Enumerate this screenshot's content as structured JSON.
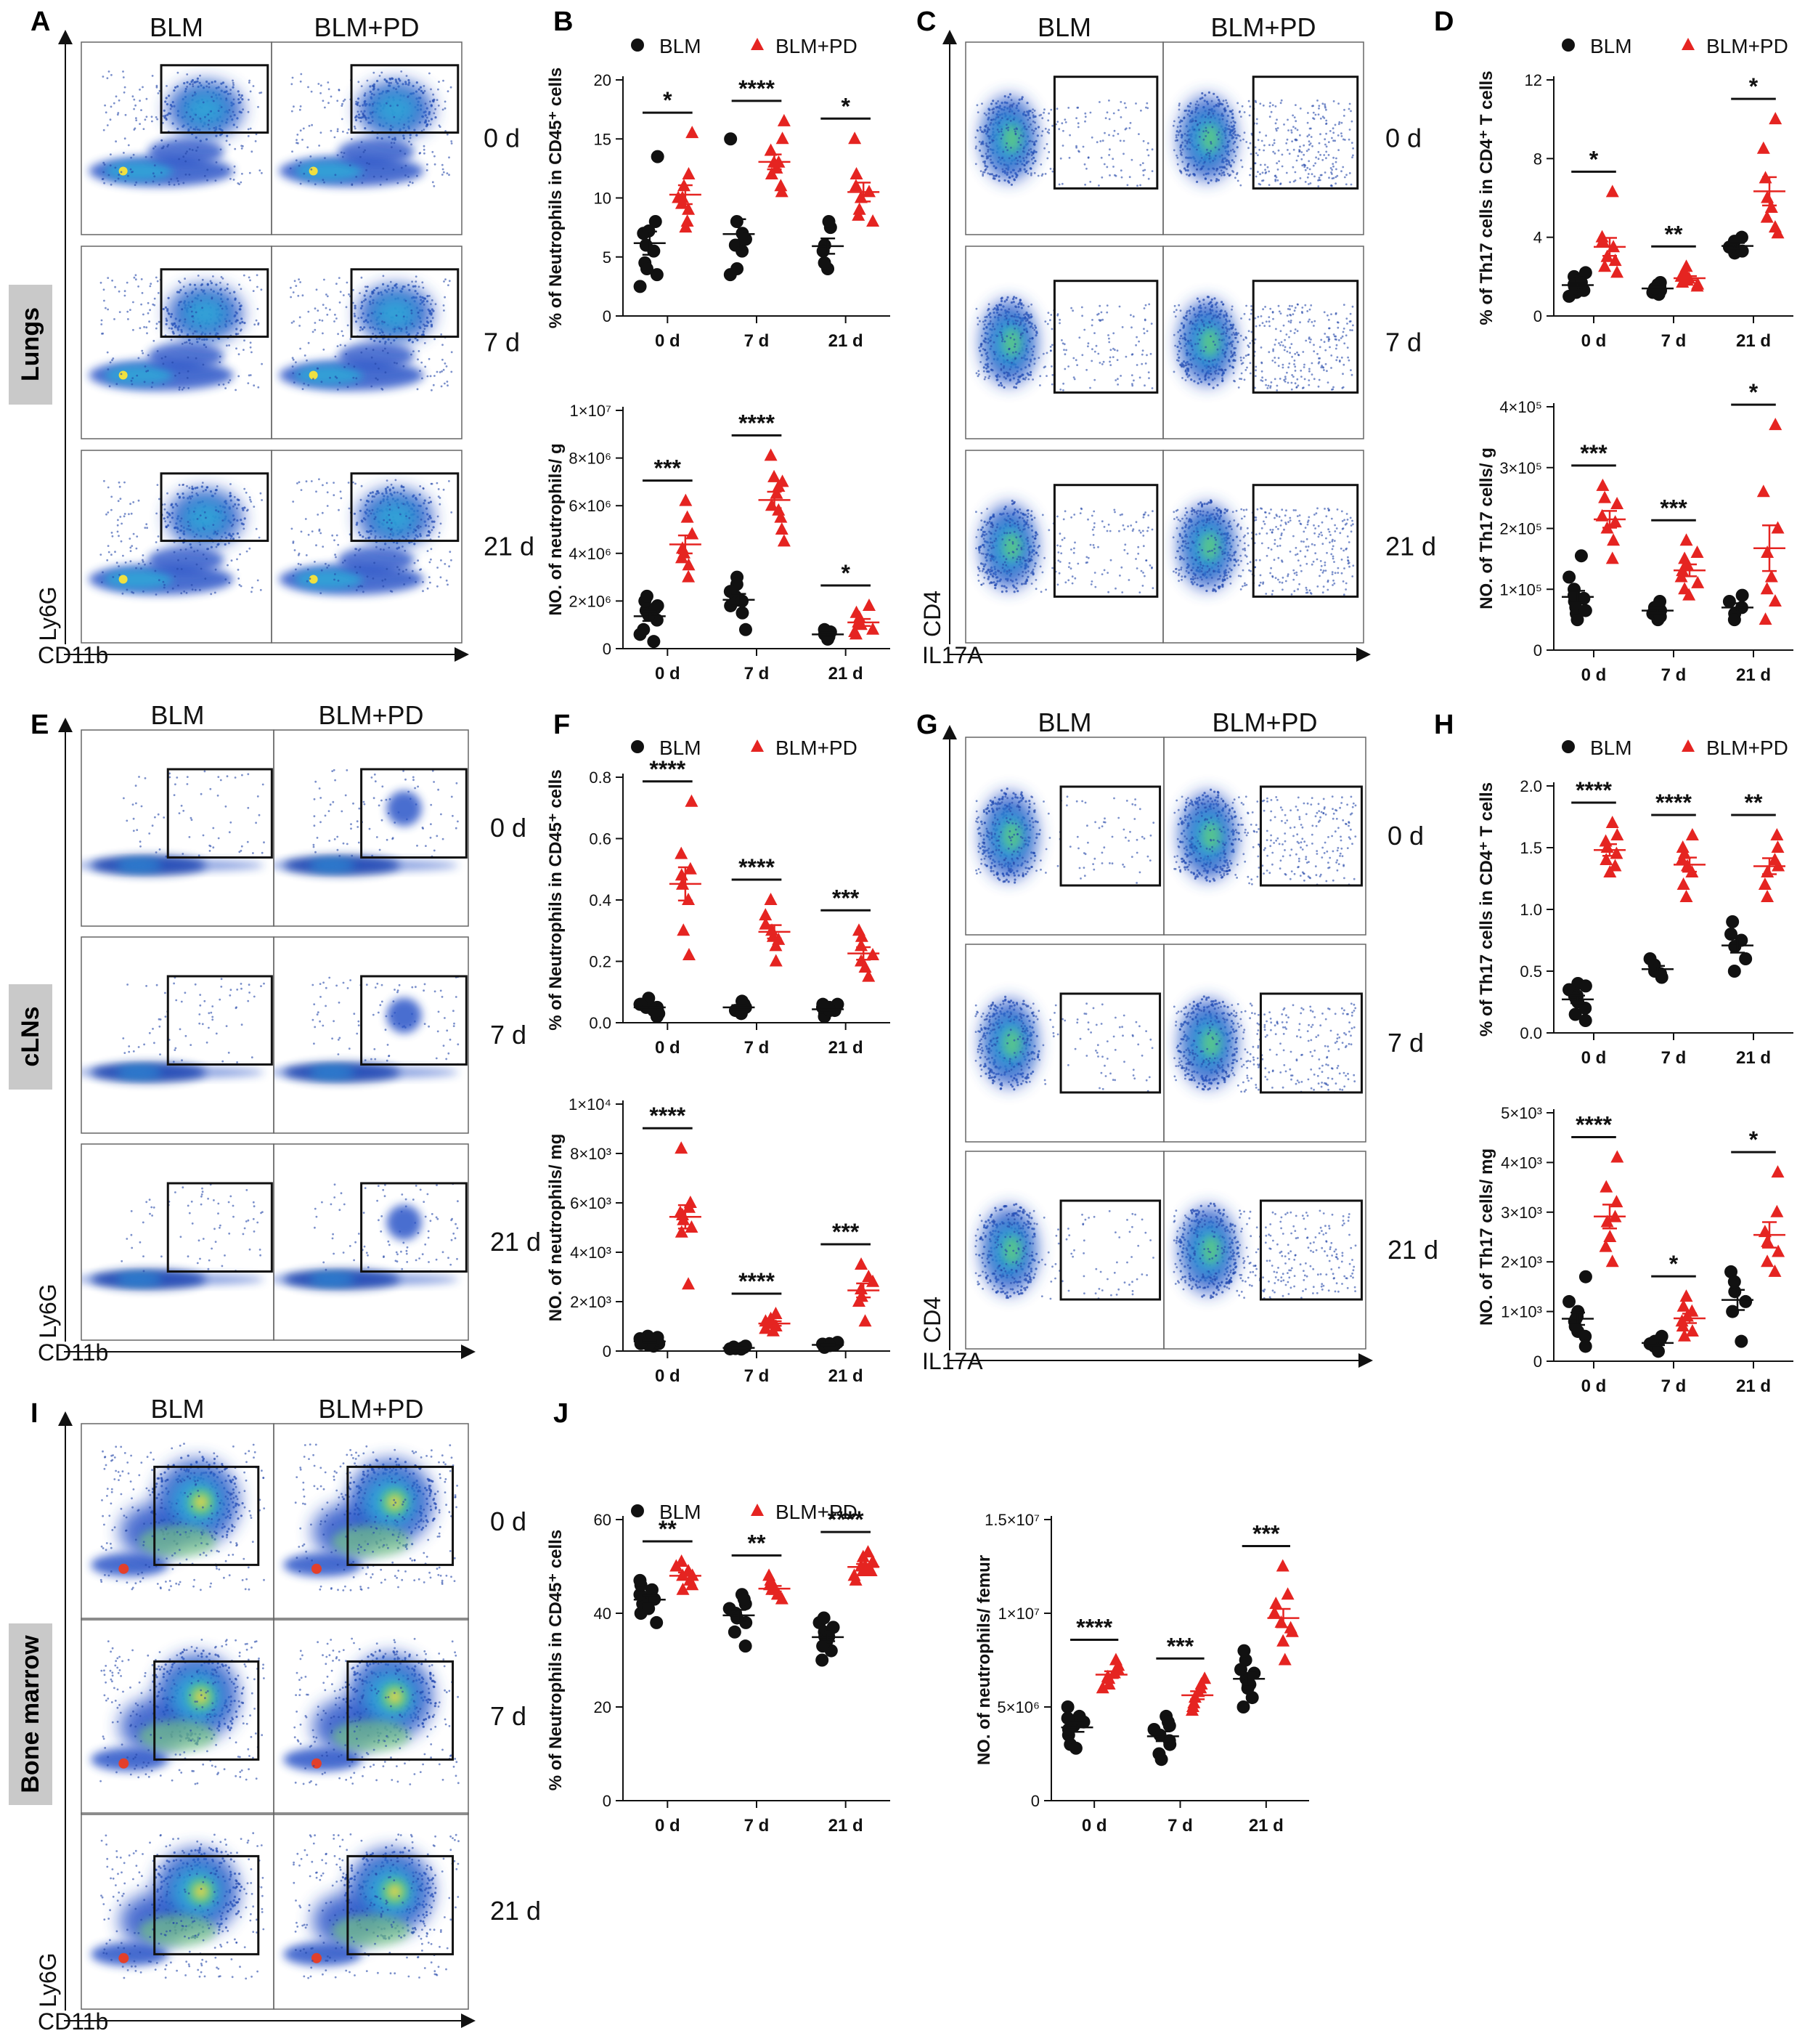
{
  "panel_letters": [
    "A",
    "B",
    "C",
    "D",
    "E",
    "F",
    "G",
    "H",
    "I",
    "J"
  ],
  "tissue_labels": [
    "Lungs",
    "cLNs",
    "Bone marrow"
  ],
  "groups": [
    "BLM",
    "BLM+PD"
  ],
  "timepoints": [
    "0 d",
    "7 d",
    "21 d"
  ],
  "axes": {
    "neutrophil_y": "Ly6G",
    "neutrophil_x": "CD11b",
    "th17_y": "CD4",
    "th17_x": "IL17A"
  },
  "colors": {
    "blm": "#111111",
    "blmpd": "#e52421",
    "tissue_label_bg": "#c9c9c9"
  },
  "chart_data": [
    {
      "id": "B1",
      "type": "scatter",
      "ylabel": "% of Neutrophils in CD45⁺ cells",
      "ylim": [
        0,
        20
      ],
      "yticks": [
        "0",
        "5",
        "10",
        "15",
        "20"
      ],
      "categories": [
        "0 d",
        "7 d",
        "21 d"
      ],
      "series": [
        "BLM",
        "BLM+PD"
      ],
      "sig": [
        "*",
        "****",
        "*"
      ],
      "values": [
        [
          [
            6,
            3.5,
            7,
            4.5,
            2.5,
            13.5,
            5.5,
            7.2,
            8,
            4
          ],
          [
            10,
            12,
            8,
            15.5,
            9,
            11,
            7.5,
            9.5,
            10
          ]
        ],
        [
          [
            6,
            7,
            4,
            8,
            5.5,
            15,
            3.5,
            6.5
          ],
          [
            12,
            13,
            11,
            16.5,
            14,
            12.5,
            10.5,
            13,
            15
          ]
        ],
        [
          [
            6,
            4,
            7.5,
            8,
            4.5,
            5.5
          ],
          [
            10,
            9,
            15,
            12,
            8,
            10.5,
            8.5,
            11
          ]
        ]
      ]
    },
    {
      "id": "B2",
      "type": "scatter",
      "ylabel": "NO. of neutrophils/ g",
      "ylim": [
        0,
        10000000
      ],
      "yticks": [
        "0",
        "2×10⁶",
        "4×10⁶",
        "6×10⁶",
        "8×10⁶",
        "1×10⁷"
      ],
      "categories": [
        "0 d",
        "7 d",
        "21 d"
      ],
      "series": [
        "BLM",
        "BLM+PD"
      ],
      "sig": [
        "***",
        "****",
        "*"
      ],
      "values": [
        [
          [
            1600000,
            1200000,
            800000,
            2000000,
            600000,
            1800000,
            300000,
            1400000,
            1700000,
            2200000
          ],
          [
            4200000,
            3500000,
            5500000,
            4800000,
            3000000,
            4000000,
            6200000,
            3800000
          ]
        ],
        [
          [
            2200000,
            1500000,
            3000000,
            2700000,
            2000000,
            1800000,
            2400000,
            800000
          ],
          [
            6000000,
            7200000,
            5500000,
            4500000,
            8100000,
            6500000,
            5000000,
            6800000,
            7000000,
            5800000
          ]
        ],
        [
          [
            600000,
            400000,
            700000,
            500000,
            800000
          ],
          [
            1000000,
            1300000,
            700000,
            1500000,
            800000,
            1800000,
            1100000,
            600000
          ]
        ]
      ]
    },
    {
      "id": "D1",
      "type": "scatter",
      "ylabel": "% of Th17 cells in CD4⁺ T cells",
      "ylim": [
        0,
        12
      ],
      "yticks": [
        "0",
        "4",
        "8",
        "12"
      ],
      "categories": [
        "0 d",
        "7 d",
        "21 d"
      ],
      "series": [
        "BLM",
        "BLM+PD"
      ],
      "sig": [
        "*",
        "**",
        "*"
      ],
      "values": [
        [
          [
            1.5,
            1.2,
            2.0,
            1.8,
            1.0,
            1.4,
            1.6,
            2.2,
            1.3,
            1.7
          ],
          [
            3.0,
            2.5,
            3.5,
            4.0,
            6.3,
            2.2,
            3.8,
            2.8
          ]
        ],
        [
          [
            1.4,
            1.2,
            1.6,
            1.5,
            1.3,
            1.1,
            1.7,
            1.4
          ],
          [
            1.8,
            2.0,
            1.5,
            2.2,
            2.5,
            1.7,
            1.9,
            2.1,
            1.6
          ]
        ],
        [
          [
            3.2,
            3.5,
            4.0,
            3.3,
            3.8
          ],
          [
            6.0,
            10.0,
            8.5,
            5.0,
            4.2,
            7.0,
            4.5,
            5.5
          ]
        ]
      ]
    },
    {
      "id": "D2",
      "type": "scatter",
      "ylabel": "NO. of Th17 cells/ g",
      "ylim": [
        0,
        400000
      ],
      "yticks": [
        "0",
        "1×10⁵",
        "2×10⁵",
        "3×10⁵",
        "4×10⁵"
      ],
      "categories": [
        "0 d",
        "7 d",
        "21 d"
      ],
      "series": [
        "BLM",
        "BLM+PD"
      ],
      "sig": [
        "***",
        "***",
        "*"
      ],
      "values": [
        [
          [
            80000,
            60000,
            100000,
            50000,
            120000,
            70000,
            90000,
            65000,
            85000,
            155000
          ],
          [
            200000,
            250000,
            180000,
            220000,
            150000,
            240000,
            270000,
            210000
          ]
        ],
        [
          [
            70000,
            60000,
            50000,
            80000,
            65000,
            75000,
            55000
          ],
          [
            140000,
            120000,
            160000,
            100000,
            180000,
            130000,
            90000,
            150000,
            110000
          ]
        ],
        [
          [
            60000,
            80000,
            70000,
            90000,
            50000
          ],
          [
            160000,
            370000,
            260000,
            100000,
            200000,
            50000,
            80000,
            120000
          ]
        ]
      ]
    },
    {
      "id": "F1",
      "type": "scatter",
      "ylabel": "% of Neutrophils in CD45⁺ cells",
      "ylim": [
        0,
        0.8
      ],
      "yticks": [
        "0.0",
        "0.2",
        "0.4",
        "0.6",
        "0.8"
      ],
      "categories": [
        "0 d",
        "7 d",
        "21 d"
      ],
      "series": [
        "BLM",
        "BLM+PD"
      ],
      "sig": [
        "****",
        "****",
        "***"
      ],
      "values": [
        [
          [
            0.05,
            0.03,
            0.07,
            0.04,
            0.06,
            0.02,
            0.05,
            0.08,
            0.04,
            0.06
          ],
          [
            0.45,
            0.5,
            0.72,
            0.55,
            0.4,
            0.3,
            0.22,
            0.48
          ]
        ],
        [
          [
            0.04,
            0.06,
            0.03,
            0.05,
            0.07
          ],
          [
            0.3,
            0.25,
            0.35,
            0.28,
            0.4,
            0.2,
            0.32,
            0.27
          ]
        ],
        [
          [
            0.03,
            0.05,
            0.04,
            0.06,
            0.02,
            0.05,
            0.04,
            0.06
          ],
          [
            0.2,
            0.25,
            0.3,
            0.18,
            0.22,
            0.15,
            0.28
          ]
        ]
      ]
    },
    {
      "id": "F2",
      "type": "scatter",
      "ylabel": "NO. of neutrophils/ mg",
      "ylim": [
        0,
        10000
      ],
      "yticks": [
        "0",
        "2×10³",
        "4×10³",
        "6×10³",
        "8×10³",
        "1×10⁴"
      ],
      "categories": [
        "0 d",
        "7 d",
        "21 d"
      ],
      "series": [
        "BLM",
        "BLM+PD"
      ],
      "sig": [
        "****",
        "****",
        "***"
      ],
      "values": [
        [
          [
            400,
            300,
            600,
            200,
            500,
            350,
            450,
            250,
            550,
            300
          ],
          [
            5500,
            6000,
            5000,
            8200,
            2700,
            5300,
            5800,
            4800,
            5600
          ]
        ],
        [
          [
            100,
            150,
            80,
            200,
            120,
            90,
            160
          ],
          [
            1100,
            1500,
            900,
            800,
            1300,
            1000,
            1200
          ]
        ],
        [
          [
            200,
            300,
            250,
            350,
            150,
            280,
            220
          ],
          [
            2500,
            3500,
            2000,
            1200,
            2800,
            3000,
            2200
          ]
        ]
      ]
    },
    {
      "id": "H1",
      "type": "scatter",
      "ylabel": "% of Th17 cells in CD4⁺ T cells",
      "ylim": [
        0,
        2.0
      ],
      "yticks": [
        "0.0",
        "0.5",
        "1.0",
        "1.5",
        "2.0"
      ],
      "categories": [
        "0 d",
        "7 d",
        "21 d"
      ],
      "series": [
        "BLM",
        "BLM+PD"
      ],
      "sig": [
        "****",
        "****",
        "**"
      ],
      "values": [
        [
          [
            0.3,
            0.25,
            0.4,
            0.2,
            0.35,
            0.15,
            0.3,
            0.1,
            0.38,
            0.28
          ],
          [
            1.5,
            1.4,
            1.6,
            1.3,
            1.7,
            1.45,
            1.55,
            1.35
          ]
        ],
        [
          [
            0.5,
            0.55,
            0.45,
            0.6,
            0.48
          ],
          [
            1.35,
            1.5,
            1.2,
            1.6,
            1.1,
            1.4,
            1.3,
            1.45
          ]
        ],
        [
          [
            0.7,
            0.8,
            0.6,
            0.9,
            0.5,
            0.75
          ],
          [
            1.3,
            1.6,
            1.1,
            1.4,
            1.5,
            1.2,
            1.35
          ]
        ]
      ]
    },
    {
      "id": "H2",
      "type": "scatter",
      "ylabel": "NO. of Th17 cells/ mg",
      "ylim": [
        0,
        5000
      ],
      "yticks": [
        "0",
        "1×10³",
        "2×10³",
        "3×10³",
        "4×10³",
        "5×10³"
      ],
      "categories": [
        "0 d",
        "7 d",
        "21 d"
      ],
      "series": [
        "BLM",
        "BLM+PD"
      ],
      "sig": [
        "****",
        "*",
        "*"
      ],
      "values": [
        [
          [
            800,
            600,
            1000,
            500,
            1200,
            700,
            900,
            300,
            1700,
            850
          ],
          [
            2800,
            3500,
            4100,
            2500,
            2000,
            3200,
            2300,
            2900
          ]
        ],
        [
          [
            400,
            300,
            500,
            350,
            450,
            200
          ],
          [
            900,
            700,
            1100,
            600,
            1300,
            800,
            1000,
            500
          ]
        ],
        [
          [
            1400,
            1800,
            1200,
            1000,
            1600,
            400
          ],
          [
            2400,
            3000,
            2000,
            1800,
            3800,
            2600,
            2200
          ]
        ]
      ]
    },
    {
      "id": "J1",
      "type": "scatter",
      "ylabel": "% of Neutrophils in CD45⁺ cells",
      "ylim": [
        0,
        60
      ],
      "yticks": [
        "0",
        "20",
        "40",
        "60"
      ],
      "categories": [
        "0 d",
        "7 d",
        "21 d"
      ],
      "series": [
        "BLM",
        "BLM+PD"
      ],
      "sig": [
        "**",
        "**",
        "****"
      ],
      "values": [
        [
          [
            43,
            40,
            45,
            42,
            44,
            38,
            46,
            41,
            47,
            43
          ],
          [
            48,
            46,
            50,
            47,
            49,
            45,
            48,
            51
          ]
        ],
        [
          [
            40,
            38,
            42,
            36,
            44,
            41,
            39,
            33,
            43
          ],
          [
            45,
            44,
            46,
            43,
            47,
            45,
            48,
            44
          ]
        ],
        [
          [
            35,
            32,
            38,
            34,
            36,
            30,
            37,
            33,
            35,
            39
          ],
          [
            50,
            49,
            52,
            48,
            51,
            53,
            50,
            47,
            49
          ]
        ]
      ]
    },
    {
      "id": "J2",
      "type": "scatter",
      "ylabel": "NO. of neutrophils/ femur",
      "ylim": [
        0,
        15000000
      ],
      "yticks": [
        "0",
        "5×10⁶",
        "1×10⁷",
        "1.5×10⁷"
      ],
      "categories": [
        "0 d",
        "7 d",
        "21 d"
      ],
      "series": [
        "BLM",
        "BLM+PD"
      ],
      "sig": [
        "****",
        "***",
        "***"
      ],
      "values": [
        [
          [
            4000000,
            3500000,
            4500000,
            3000000,
            5000000,
            4200000,
            3800000,
            2800000,
            4400000
          ],
          [
            6500000,
            7000000,
            6000000,
            7500000,
            6800000,
            6200000,
            7200000,
            6600000
          ]
        ],
        [
          [
            3500000,
            3000000,
            4000000,
            2500000,
            4500000,
            3800000,
            2200000,
            3200000,
            4200000
          ],
          [
            5500000,
            6000000,
            5000000,
            6500000,
            5200000,
            5800000,
            4800000,
            6200000
          ]
        ],
        [
          [
            6500000,
            5500000,
            7000000,
            6000000,
            7500000,
            5000000,
            6800000,
            8000000,
            6200000
          ],
          [
            9500000,
            12500000,
            8500000,
            10000000,
            9000000,
            11000000,
            7500000,
            10500000,
            9200000
          ]
        ]
      ]
    }
  ]
}
